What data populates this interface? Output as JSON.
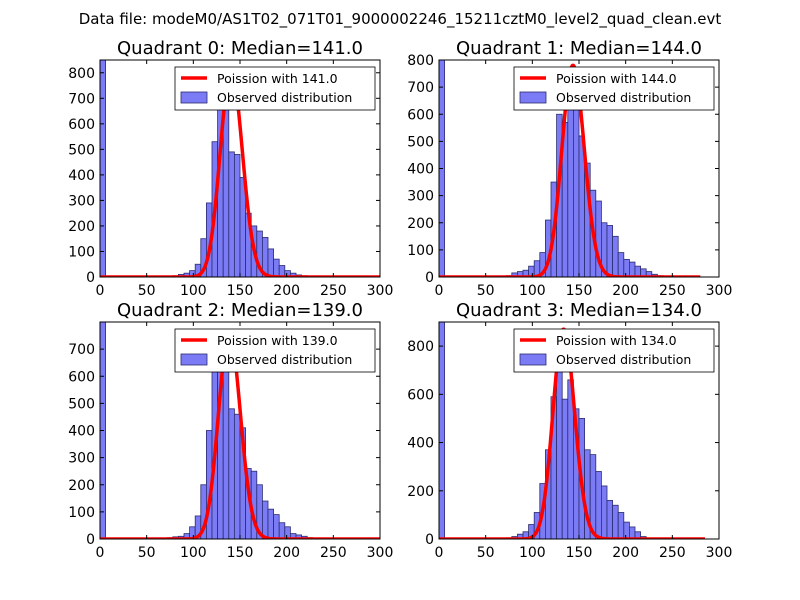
{
  "suptitle": "Data file: modeM0/AS1T02_071T01_9000002246_15211cztM0_level2_quad_clean.evt",
  "colors": {
    "bar_fill": "#7b7bf6",
    "bar_edge": "#2c2c70",
    "fit_line": "#ff0000"
  },
  "chart_data": [
    {
      "type": "bar",
      "title": "Quadrant 0: Median=141.0",
      "xlim": [
        0,
        300
      ],
      "ylim": [
        0,
        850
      ],
      "xticks": [
        0,
        50,
        100,
        150,
        200,
        250,
        300
      ],
      "yticks": [
        0,
        100,
        200,
        300,
        400,
        500,
        600,
        700,
        800
      ],
      "bin_width": 6,
      "bin_starts": [
        0,
        78,
        84,
        90,
        96,
        102,
        108,
        114,
        120,
        126,
        132,
        138,
        144,
        150,
        156,
        162,
        168,
        174,
        180,
        186,
        192,
        198,
        204,
        210,
        216,
        222
      ],
      "values": [
        850,
        5,
        10,
        15,
        25,
        50,
        150,
        290,
        530,
        710,
        680,
        490,
        480,
        390,
        250,
        200,
        180,
        155,
        110,
        70,
        45,
        25,
        15,
        8,
        5,
        2
      ],
      "poisson_mean": 141.0,
      "poisson_peak": 810,
      "line_x_range": [
        0,
        300
      ],
      "legend": {
        "line_label": "Poission with 141.0",
        "bar_label": "Observed distribution",
        "location": "upper right"
      }
    },
    {
      "type": "bar",
      "title": "Quadrant 1: Median=144.0",
      "xlim": [
        0,
        300
      ],
      "ylim": [
        0,
        800
      ],
      "xticks": [
        0,
        50,
        100,
        150,
        200,
        250,
        300
      ],
      "yticks": [
        0,
        100,
        200,
        300,
        400,
        500,
        600,
        700,
        800
      ],
      "bin_width": 6,
      "bin_starts": [
        0,
        72,
        78,
        84,
        90,
        96,
        102,
        108,
        114,
        120,
        126,
        132,
        138,
        144,
        150,
        156,
        162,
        168,
        174,
        180,
        186,
        192,
        198,
        204,
        210,
        216,
        222,
        228,
        234
      ],
      "values": [
        800,
        5,
        15,
        20,
        25,
        40,
        60,
        90,
        210,
        350,
        600,
        570,
        680,
        640,
        520,
        420,
        320,
        280,
        200,
        190,
        150,
        90,
        65,
        55,
        40,
        30,
        20,
        10,
        5
      ],
      "poisson_mean": 144.0,
      "poisson_peak": 780,
      "line_x_range": [
        0,
        280
      ],
      "legend": {
        "line_label": "Poission with 144.0",
        "bar_label": "Observed distribution",
        "location": "upper right"
      }
    },
    {
      "type": "bar",
      "title": "Quadrant 2: Median=139.0",
      "xlim": [
        0,
        300
      ],
      "ylim": [
        0,
        800
      ],
      "xticks": [
        0,
        50,
        100,
        150,
        200,
        250,
        300
      ],
      "yticks": [
        0,
        100,
        200,
        300,
        400,
        500,
        600,
        700
      ],
      "bin_width": 6,
      "bin_starts": [
        0,
        72,
        78,
        84,
        90,
        96,
        102,
        108,
        114,
        120,
        126,
        132,
        138,
        144,
        150,
        156,
        162,
        168,
        174,
        180,
        186,
        192,
        198,
        204,
        210,
        216,
        222,
        228
      ],
      "values": [
        800,
        5,
        8,
        10,
        20,
        45,
        85,
        200,
        400,
        750,
        690,
        740,
        480,
        460,
        410,
        260,
        250,
        200,
        140,
        110,
        90,
        60,
        45,
        20,
        15,
        10,
        5,
        2
      ],
      "poisson_mean": 139.0,
      "poisson_peak": 760,
      "line_x_range": [
        0,
        300
      ],
      "legend": {
        "line_label": "Poission with 139.0",
        "bar_label": "Observed distribution",
        "location": "upper right"
      }
    },
    {
      "type": "bar",
      "title": "Quadrant 3: Median=134.0",
      "xlim": [
        0,
        300
      ],
      "ylim": [
        0,
        900
      ],
      "xticks": [
        0,
        50,
        100,
        150,
        200,
        250,
        300
      ],
      "yticks": [
        0,
        200,
        400,
        600,
        800
      ],
      "bin_width": 6,
      "bin_starts": [
        0,
        72,
        78,
        84,
        90,
        96,
        102,
        108,
        114,
        120,
        126,
        132,
        138,
        144,
        150,
        156,
        162,
        168,
        174,
        180,
        186,
        192,
        198,
        204,
        210,
        216,
        222
      ],
      "values": [
        900,
        5,
        10,
        20,
        30,
        60,
        110,
        230,
        370,
        590,
        700,
        580,
        660,
        540,
        500,
        370,
        350,
        280,
        220,
        160,
        140,
        110,
        70,
        50,
        30,
        10,
        3
      ],
      "poisson_mean": 134.0,
      "poisson_peak": 870,
      "line_x_range": [
        0,
        285
      ],
      "legend": {
        "line_label": "Poission with 134.0",
        "bar_label": "Observed distribution",
        "location": "upper right"
      }
    }
  ]
}
